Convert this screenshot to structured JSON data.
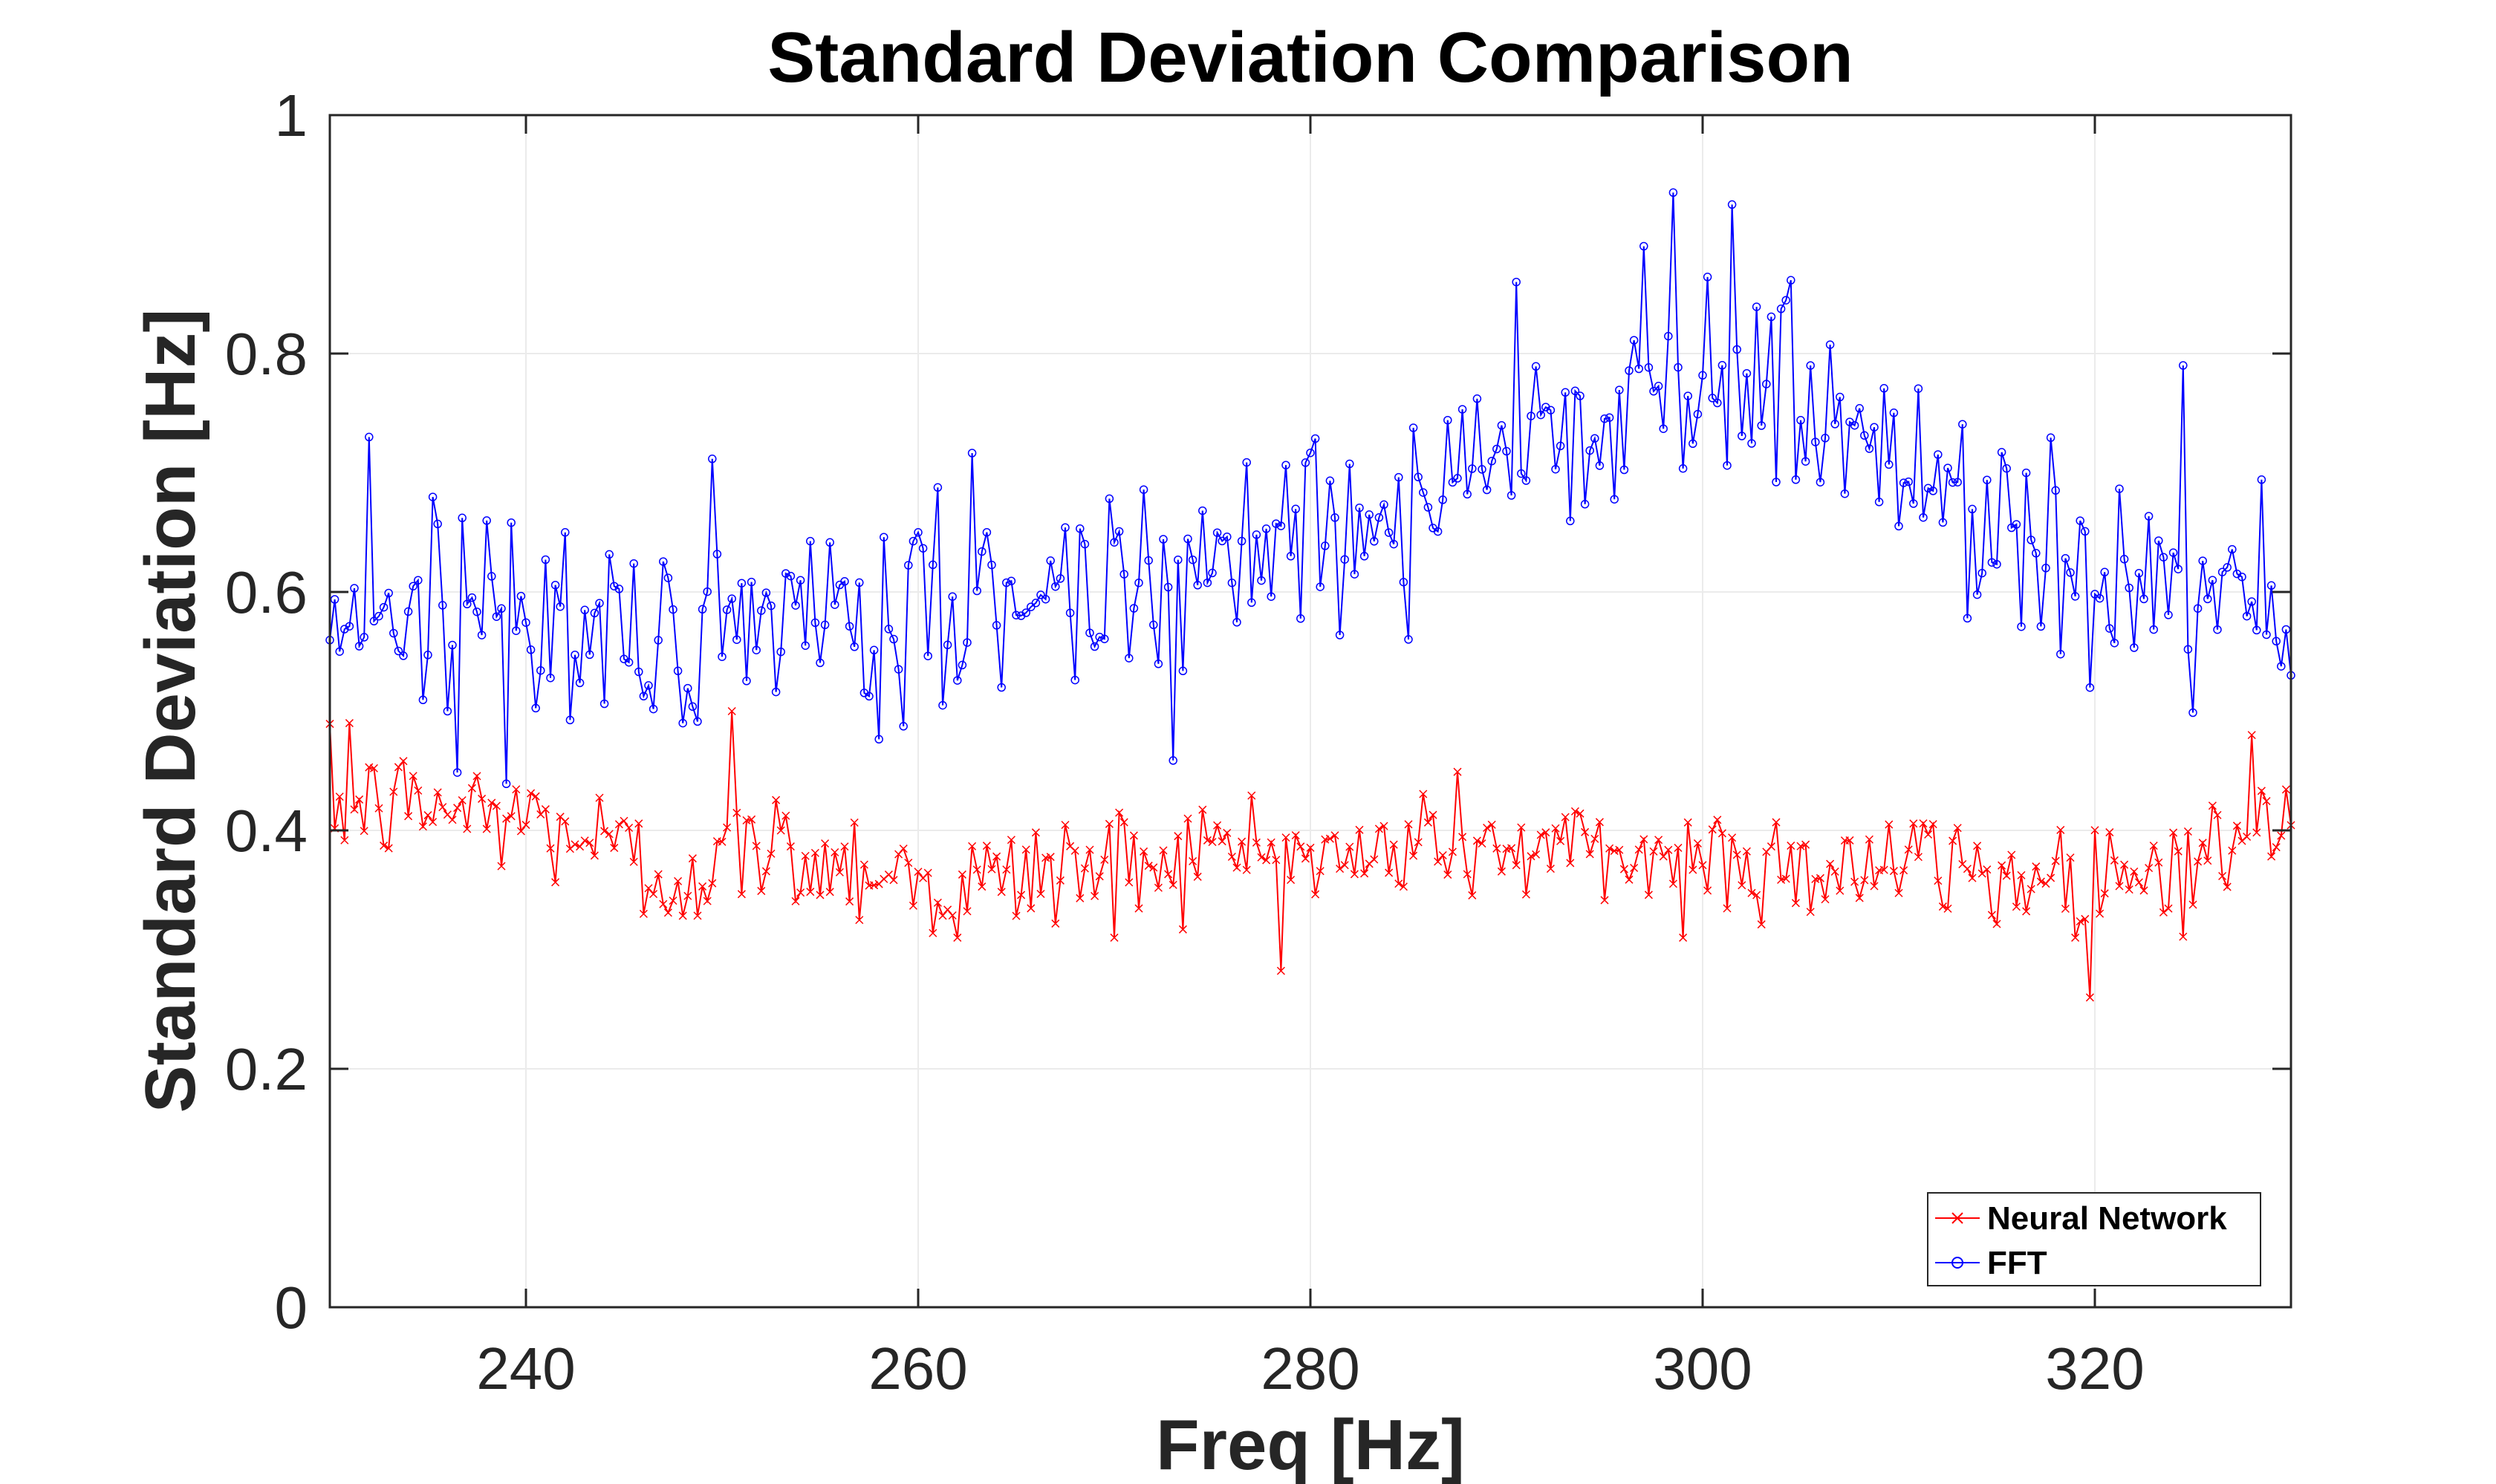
{
  "chart_data": {
    "type": "line",
    "title": "Standard Deviation Comparison",
    "xlabel": "Freq [Hz]",
    "ylabel": "Standard Deviation [Hz]",
    "xlim": [
      230,
      330
    ],
    "ylim": [
      0,
      1
    ],
    "x_ticks": [
      240,
      260,
      280,
      300,
      320
    ],
    "x_tick_labels": [
      "240",
      "260",
      "280",
      "300",
      "320"
    ],
    "y_ticks": [
      0,
      0.2,
      0.4,
      0.6,
      0.8,
      1
    ],
    "y_tick_labels": [
      "0",
      "0.2",
      "0.4",
      "0.6",
      "0.8",
      "1"
    ],
    "grid": true,
    "legend_position": "bottom-right",
    "x": {
      "start": 230,
      "end": 330,
      "step": 0.25
    },
    "series": [
      {
        "name": "Neural Network",
        "color": "#ff0000",
        "marker": "x",
        "trend_x": [
          230,
          235,
          240,
          244,
          247,
          252,
          258,
          262,
          266,
          272,
          278,
          282,
          286,
          292,
          300,
          306,
          312,
          316,
          320,
          324,
          330
        ],
        "trend_y": [
          0.42,
          0.42,
          0.41,
          0.39,
          0.36,
          0.385,
          0.37,
          0.35,
          0.365,
          0.38,
          0.385,
          0.37,
          0.395,
          0.38,
          0.38,
          0.37,
          0.37,
          0.36,
          0.365,
          0.37,
          0.4
        ],
        "noise": 0.025,
        "peaks": [
          {
            "x": 250.5,
            "y": 0.5
          },
          {
            "x": 231,
            "y": 0.49
          },
          {
            "x": 246,
            "y": 0.33
          },
          {
            "x": 262,
            "y": 0.31
          },
          {
            "x": 270,
            "y": 0.31
          },
          {
            "x": 299,
            "y": 0.31
          },
          {
            "x": 319,
            "y": 0.31
          },
          {
            "x": 328,
            "y": 0.48
          }
        ]
      },
      {
        "name": "FFT",
        "color": "#0000ff",
        "marker": "o",
        "trend_x": [
          230,
          235,
          240,
          245,
          250,
          255,
          260,
          265,
          270,
          275,
          280,
          285,
          290,
          295,
          300,
          305,
          310,
          315,
          320,
          325,
          330
        ],
        "trend_y": [
          0.59,
          0.59,
          0.575,
          0.565,
          0.555,
          0.565,
          0.58,
          0.595,
          0.61,
          0.63,
          0.65,
          0.685,
          0.715,
          0.755,
          0.78,
          0.76,
          0.705,
          0.665,
          0.63,
          0.605,
          0.585
        ],
        "noise": 0.045,
        "peaks": [
          {
            "x": 298.4,
            "y": 0.935
          },
          {
            "x": 301.5,
            "y": 0.925
          },
          {
            "x": 297,
            "y": 0.89
          },
          {
            "x": 290.5,
            "y": 0.86
          },
          {
            "x": 324.5,
            "y": 0.79
          },
          {
            "x": 230.5,
            "y": 0.55
          },
          {
            "x": 232,
            "y": 0.73
          },
          {
            "x": 236,
            "y": 0.5
          },
          {
            "x": 248,
            "y": 0.49
          },
          {
            "x": 330,
            "y": 0.53
          }
        ]
      }
    ]
  }
}
